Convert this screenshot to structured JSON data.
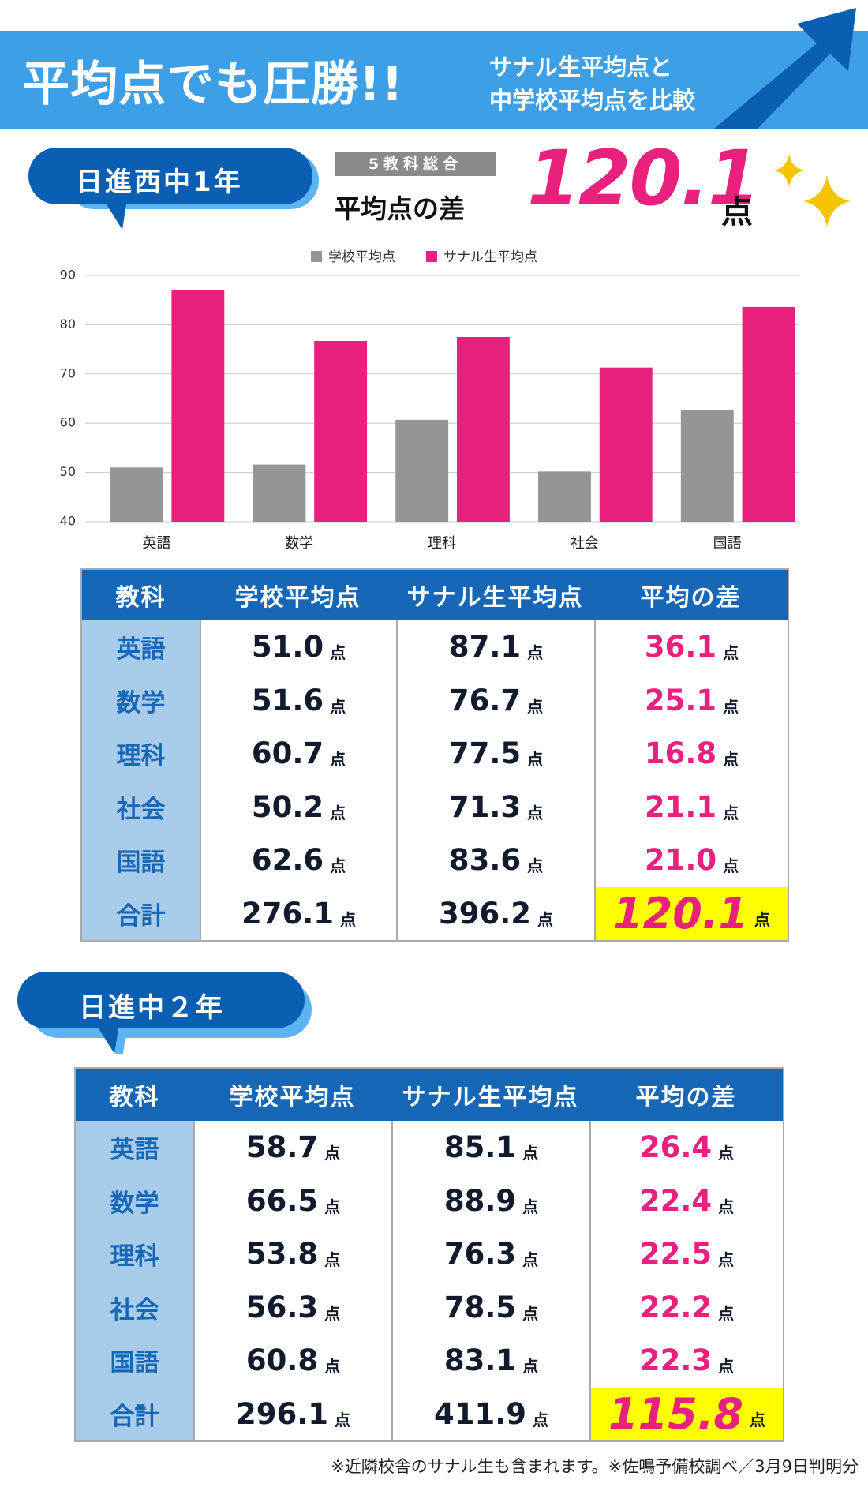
{
  "header": {
    "title": "平均点でも圧勝!!",
    "subtitle": [
      "サナル生平均点と",
      "中学校平均点を比較"
    ]
  },
  "unit": "点",
  "summary": {
    "label": "5教科総合",
    "caption": "平均点の差",
    "value": "120.1"
  },
  "chart_data": {
    "type": "bar",
    "categories": [
      "英語",
      "数学",
      "理科",
      "社会",
      "国語"
    ],
    "series": [
      {
        "name": "学校平均点",
        "color": "#959595",
        "values": [
          51.0,
          51.6,
          60.7,
          50.2,
          62.6
        ]
      },
      {
        "name": "サナル生平均点",
        "color": "#e8217f",
        "values": [
          87.1,
          76.7,
          77.5,
          71.3,
          83.6
        ]
      }
    ],
    "ylim": [
      40,
      90
    ],
    "yticks": [
      40,
      50,
      60,
      70,
      80,
      90
    ],
    "grid": true,
    "legend": "top"
  },
  "sections": [
    {
      "label": "日進西中1年",
      "table": {
        "header": [
          "教科",
          "学校平均点",
          "サナル生平均点",
          "平均の差"
        ],
        "rows": [
          [
            "英語",
            "51.0",
            "87.1",
            "36.1"
          ],
          [
            "数学",
            "51.6",
            "76.7",
            "25.1"
          ],
          [
            "理科",
            "60.7",
            "77.5",
            "16.8"
          ],
          [
            "社会",
            "50.2",
            "71.3",
            "21.1"
          ],
          [
            "国語",
            "62.6",
            "83.6",
            "21.0"
          ],
          [
            "合計",
            "276.1",
            "396.2",
            "120.1"
          ]
        ]
      }
    },
    {
      "label": "日進中２年",
      "table": {
        "header": [
          "教科",
          "学校平均点",
          "サナル生平均点",
          "平均の差"
        ],
        "rows": [
          [
            "英語",
            "58.7",
            "85.1",
            "26.4"
          ],
          [
            "数学",
            "66.5",
            "88.9",
            "22.4"
          ],
          [
            "理科",
            "53.8",
            "76.3",
            "22.5"
          ],
          [
            "社会",
            "56.3",
            "78.5",
            "22.2"
          ],
          [
            "国語",
            "60.8",
            "83.1",
            "22.3"
          ],
          [
            "合計",
            "296.1",
            "411.9",
            "115.8"
          ]
        ]
      }
    }
  ],
  "footnote": "※近隣校舎のサナル生も含まれます。※佐鳴予備校調べ／3月9日判明分"
}
